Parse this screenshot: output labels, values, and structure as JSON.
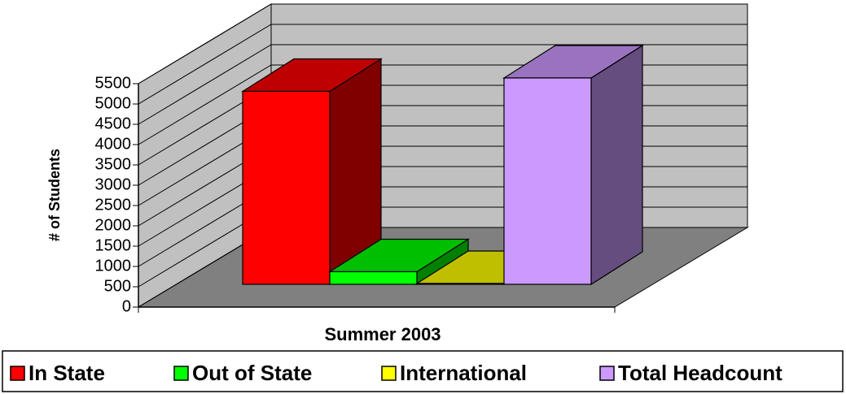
{
  "chart_data": {
    "type": "bar",
    "categories": [
      "Summer 2003"
    ],
    "ylabel": "# of Students",
    "series": [
      {
        "name": "In State",
        "color": "#ff0000",
        "values": [
          4750
        ]
      },
      {
        "name": "Out of State",
        "color": "#00ff00",
        "values": [
          310
        ]
      },
      {
        "name": "International",
        "color": "#ffff00",
        "values": [
          20
        ]
      },
      {
        "name": "Total Headcount",
        "color": "#cc99ff",
        "values": [
          5080
        ]
      }
    ],
    "ylim": [
      0,
      5500
    ],
    "yticks": [
      0,
      500,
      1000,
      1500,
      2000,
      2500,
      3000,
      3500,
      4000,
      4500,
      5000,
      5500
    ],
    "grid": true,
    "legend": "bottom"
  }
}
